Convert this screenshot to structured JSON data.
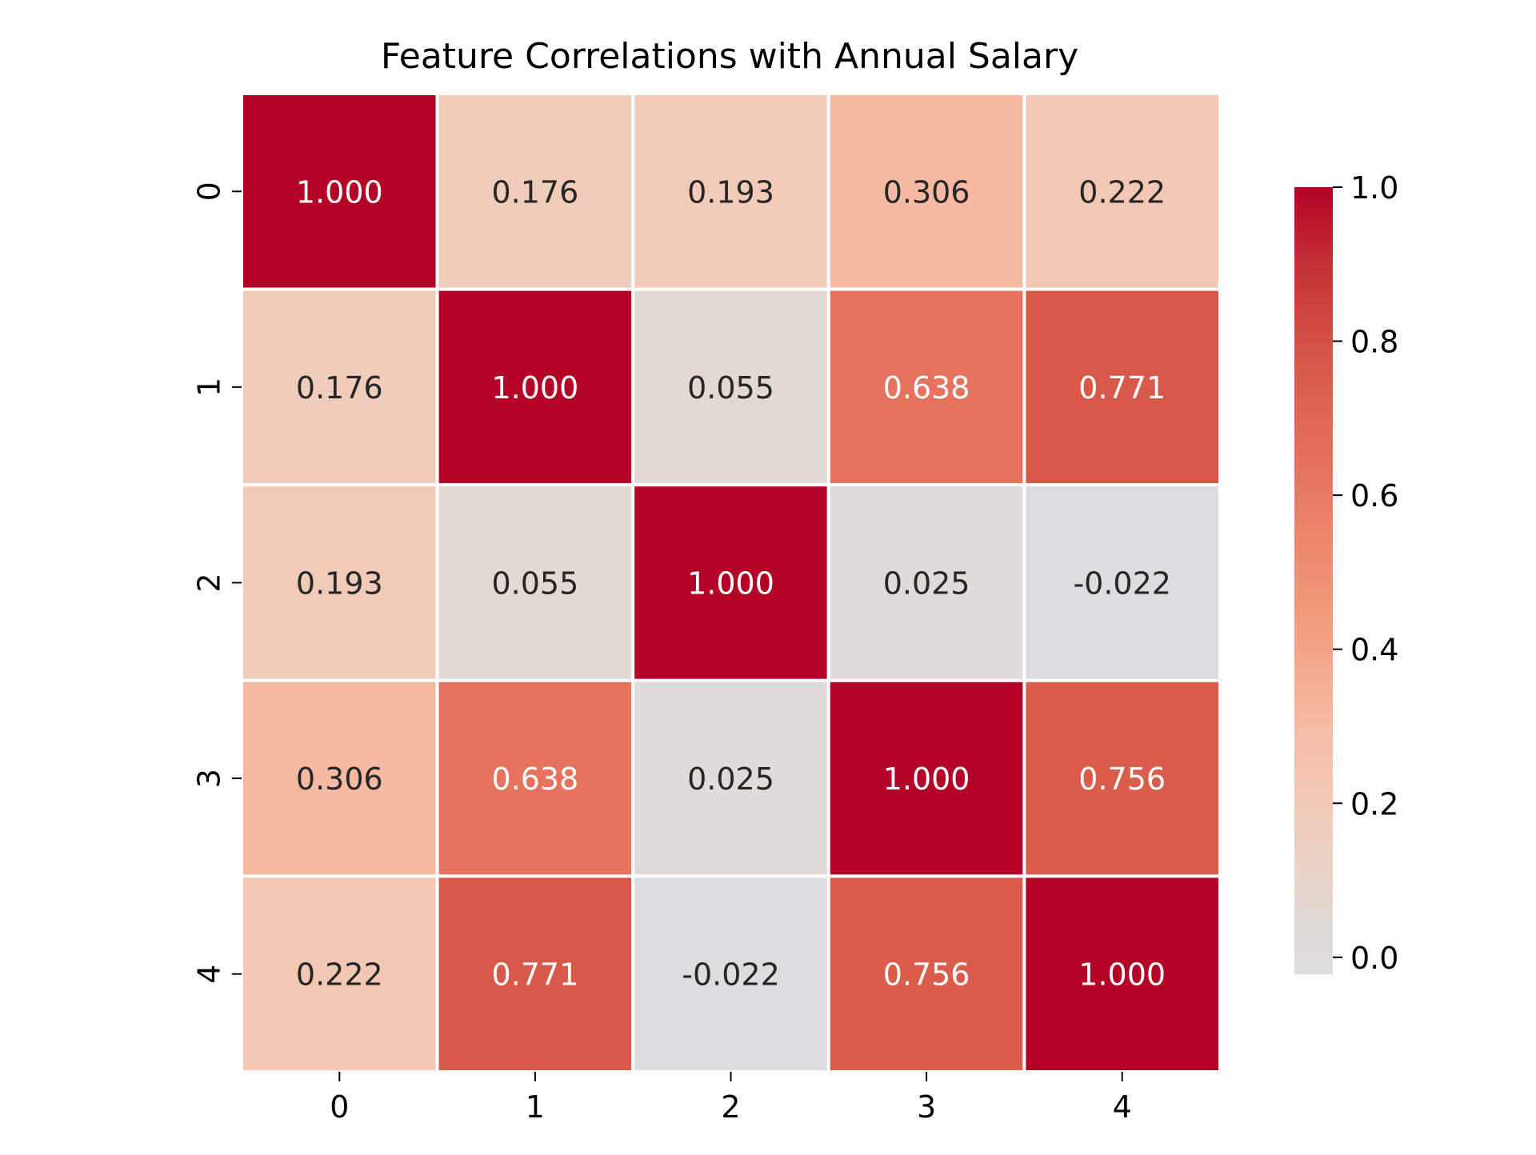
{
  "chart_data": {
    "type": "heatmap",
    "title": "Feature Correlations with Annual Salary",
    "xlabel": "",
    "ylabel": "",
    "x_labels": [
      "0",
      "1",
      "2",
      "3",
      "4"
    ],
    "y_labels": [
      "0",
      "1",
      "2",
      "3",
      "4"
    ],
    "matrix": [
      [
        1.0,
        0.176,
        0.193,
        0.306,
        0.222
      ],
      [
        0.176,
        1.0,
        0.055,
        0.638,
        0.771
      ],
      [
        0.193,
        0.055,
        1.0,
        0.025,
        -0.022
      ],
      [
        0.306,
        0.638,
        0.025,
        1.0,
        0.756
      ],
      [
        0.222,
        0.771,
        -0.022,
        0.756,
        1.0
      ]
    ],
    "annotations": [
      [
        "1.000",
        "0.176",
        "0.193",
        "0.306",
        "0.222"
      ],
      [
        "0.176",
        "1.000",
        "0.055",
        "0.638",
        "0.771"
      ],
      [
        "0.193",
        "0.055",
        "1.000",
        "0.025",
        "-0.022"
      ],
      [
        "0.306",
        "0.638",
        "0.025",
        "1.000",
        "0.756"
      ],
      [
        "0.222",
        "0.771",
        "-0.022",
        "0.756",
        "1.000"
      ]
    ],
    "colormap": "coolwarm",
    "vmin": -0.022,
    "vmax": 1.0,
    "colorbar": {
      "ticks": [
        0.0,
        0.2,
        0.4,
        0.6,
        0.8,
        1.0
      ],
      "tick_labels": [
        "0.0",
        "0.2",
        "0.4",
        "0.6",
        "0.8",
        "1.0"
      ]
    },
    "grid": false,
    "legend": "none"
  }
}
